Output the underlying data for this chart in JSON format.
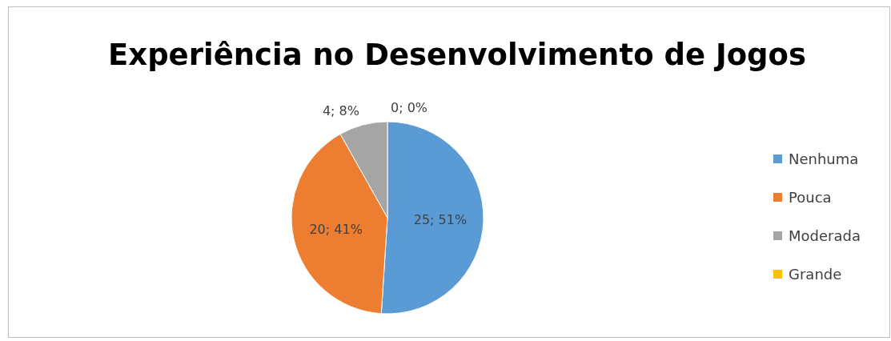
{
  "chart_data": {
    "type": "pie",
    "title": "Experiência no Desenvolvimento de Jogos",
    "categories": [
      "Nenhuma",
      "Pouca",
      "Moderada",
      "Grande"
    ],
    "values": [
      25,
      20,
      4,
      0
    ],
    "colors": [
      "#5b9bd5",
      "#ed7d31",
      "#a5a5a5",
      "#ffc000"
    ],
    "value_labels": [
      "25; 51%",
      "20; 41%",
      "4; 8%",
      "0; 0%"
    ],
    "legend": "right"
  }
}
